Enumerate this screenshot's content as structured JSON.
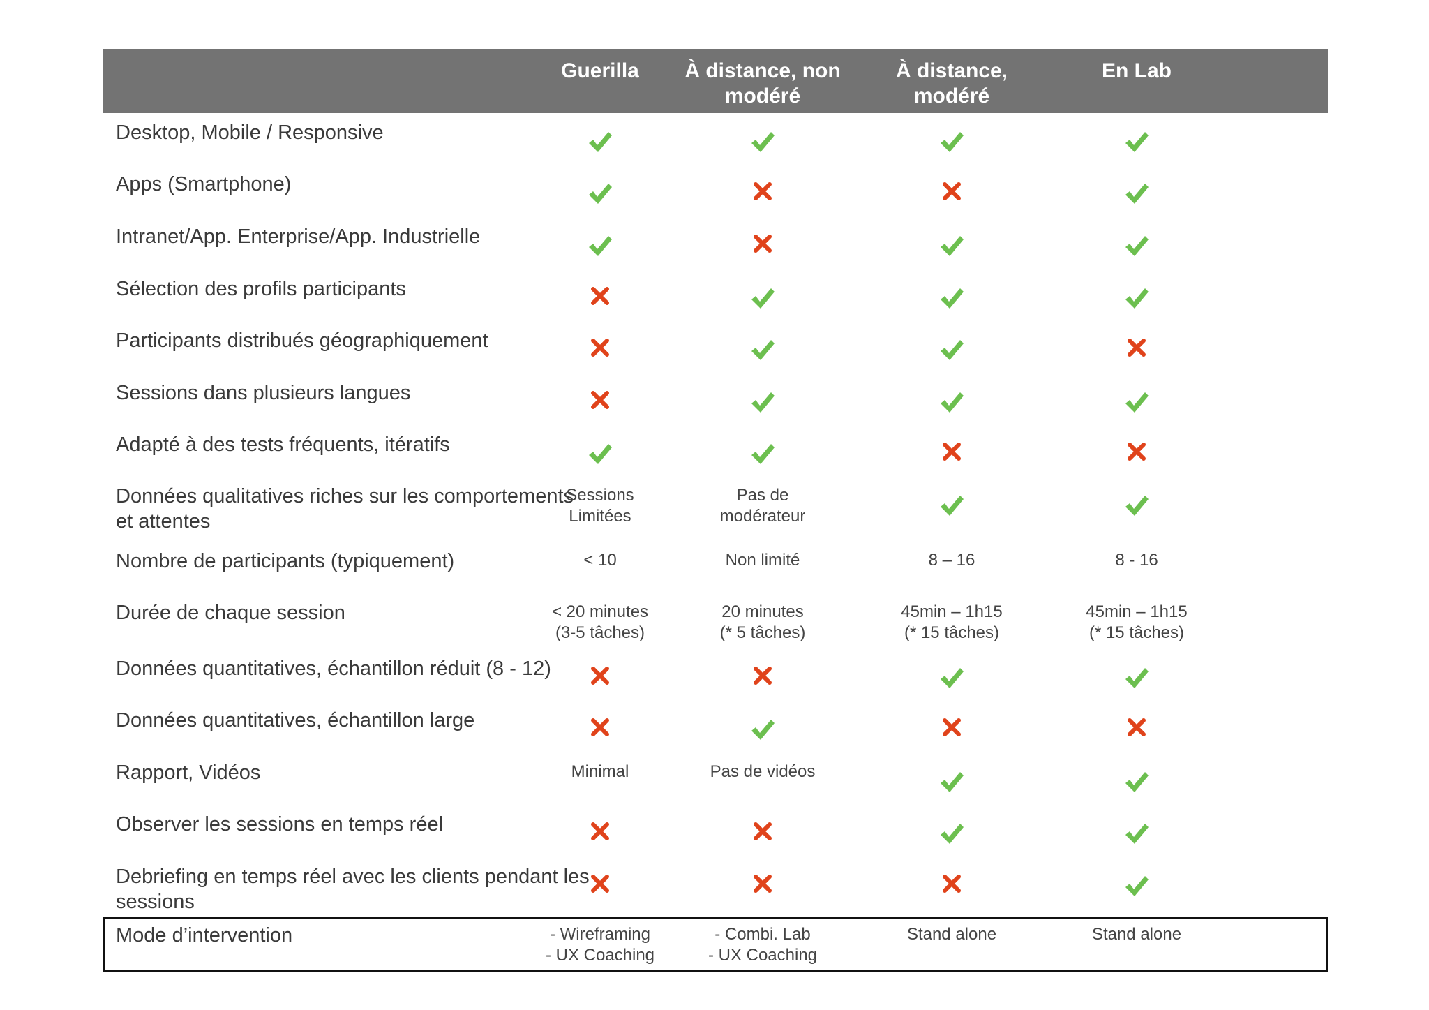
{
  "columns": [
    {
      "label": "Guerilla"
    },
    {
      "label": "À distance, non\nmodéré"
    },
    {
      "label": "À distance,\nmodéré"
    },
    {
      "label": "En Lab"
    }
  ],
  "rows": [
    {
      "label": "Desktop, Mobile / Responsive",
      "cells": [
        {
          "type": "check",
          "icon": "check-icon"
        },
        {
          "type": "check",
          "icon": "check-icon"
        },
        {
          "type": "check",
          "icon": "check-icon"
        },
        {
          "type": "check",
          "icon": "check-icon"
        }
      ]
    },
    {
      "label": "Apps (Smartphone)",
      "cells": [
        {
          "type": "check",
          "icon": "check-icon"
        },
        {
          "type": "cross",
          "icon": "cross-icon"
        },
        {
          "type": "cross",
          "icon": "cross-icon"
        },
        {
          "type": "check",
          "icon": "check-icon"
        }
      ]
    },
    {
      "label": "Intranet/App. Enterprise/App. Industrielle",
      "cells": [
        {
          "type": "check",
          "icon": "check-icon"
        },
        {
          "type": "cross",
          "icon": "cross-icon"
        },
        {
          "type": "check",
          "icon": "check-icon"
        },
        {
          "type": "check",
          "icon": "check-icon"
        }
      ]
    },
    {
      "label": "Sélection des profils participants",
      "cells": [
        {
          "type": "cross",
          "icon": "cross-icon"
        },
        {
          "type": "check",
          "icon": "check-icon"
        },
        {
          "type": "check",
          "icon": "check-icon"
        },
        {
          "type": "check",
          "icon": "check-icon"
        }
      ]
    },
    {
      "label": "Participants distribués géographiquement",
      "cells": [
        {
          "type": "cross",
          "icon": "cross-icon"
        },
        {
          "type": "check",
          "icon": "check-icon"
        },
        {
          "type": "check",
          "icon": "check-icon"
        },
        {
          "type": "cross",
          "icon": "cross-icon"
        }
      ]
    },
    {
      "label": "Sessions dans plusieurs langues",
      "cells": [
        {
          "type": "cross",
          "icon": "cross-icon"
        },
        {
          "type": "check",
          "icon": "check-icon"
        },
        {
          "type": "check",
          "icon": "check-icon"
        },
        {
          "type": "check",
          "icon": "check-icon"
        }
      ]
    },
    {
      "label": "Adapté à des tests fréquents, itératifs",
      "cells": [
        {
          "type": "check",
          "icon": "check-icon"
        },
        {
          "type": "check",
          "icon": "check-icon"
        },
        {
          "type": "cross",
          "icon": "cross-icon"
        },
        {
          "type": "cross",
          "icon": "cross-icon"
        }
      ]
    },
    {
      "label": "Données qualitatives riches sur les comportements\net attentes",
      "cells": [
        {
          "type": "text",
          "text": "Sessions\nLimitées"
        },
        {
          "type": "text",
          "text": "Pas de\nmodérateur"
        },
        {
          "type": "check",
          "icon": "check-icon"
        },
        {
          "type": "check",
          "icon": "check-icon"
        }
      ]
    },
    {
      "label": "Nombre de participants (typiquement)",
      "cells": [
        {
          "type": "text",
          "text": "< 10"
        },
        {
          "type": "text",
          "text": "Non limité"
        },
        {
          "type": "text",
          "text": "8 – 16"
        },
        {
          "type": "text",
          "text": "8 - 16"
        }
      ]
    },
    {
      "label": "Durée de chaque session",
      "cells": [
        {
          "type": "text",
          "text": "< 20 minutes\n(3-5 tâches)"
        },
        {
          "type": "text",
          "text": "20 minutes\n(* 5 tâches)"
        },
        {
          "type": "text",
          "text": "45min – 1h15\n(* 15 tâches)"
        },
        {
          "type": "text",
          "text": "45min – 1h15\n(* 15 tâches)"
        }
      ]
    },
    {
      "label": "Données quantitatives, échantillon réduit (8 - 12)",
      "cells": [
        {
          "type": "cross",
          "icon": "cross-icon"
        },
        {
          "type": "cross",
          "icon": "cross-icon"
        },
        {
          "type": "check",
          "icon": "check-icon"
        },
        {
          "type": "check",
          "icon": "check-icon"
        }
      ]
    },
    {
      "label": "Données quantitatives, échantillon large",
      "cells": [
        {
          "type": "cross",
          "icon": "cross-icon"
        },
        {
          "type": "check",
          "icon": "check-icon"
        },
        {
          "type": "cross",
          "icon": "cross-icon"
        },
        {
          "type": "cross",
          "icon": "cross-icon"
        }
      ]
    },
    {
      "label": "Rapport, Vidéos",
      "cells": [
        {
          "type": "text",
          "text": "Minimal"
        },
        {
          "type": "text",
          "text": "Pas de vidéos"
        },
        {
          "type": "check",
          "icon": "check-icon"
        },
        {
          "type": "check",
          "icon": "check-icon"
        }
      ]
    },
    {
      "label": "Observer les sessions en temps réel",
      "cells": [
        {
          "type": "cross",
          "icon": "cross-icon"
        },
        {
          "type": "cross",
          "icon": "cross-icon"
        },
        {
          "type": "check",
          "icon": "check-icon"
        },
        {
          "type": "check",
          "icon": "check-icon"
        }
      ]
    },
    {
      "label": "Debriefing en temps réel avec les clients pendant les\nsessions",
      "cells": [
        {
          "type": "cross",
          "icon": "cross-icon"
        },
        {
          "type": "cross",
          "icon": "cross-icon"
        },
        {
          "type": "cross",
          "icon": "cross-icon"
        },
        {
          "type": "check",
          "icon": "check-icon"
        }
      ]
    },
    {
      "label": "Mode d’intervention",
      "boxed": true,
      "cells": [
        {
          "type": "text",
          "text": "- Wireframing\n- UX Coaching"
        },
        {
          "type": "text",
          "text": "- Combi. Lab\n- UX Coaching"
        },
        {
          "type": "text",
          "text": "Stand alone"
        },
        {
          "type": "text",
          "text": "Stand alone"
        }
      ]
    }
  ],
  "colors": {
    "header_bg": "#737373",
    "check": "#6cbf4f",
    "cross": "#e0431b",
    "box_border": "#111111"
  }
}
